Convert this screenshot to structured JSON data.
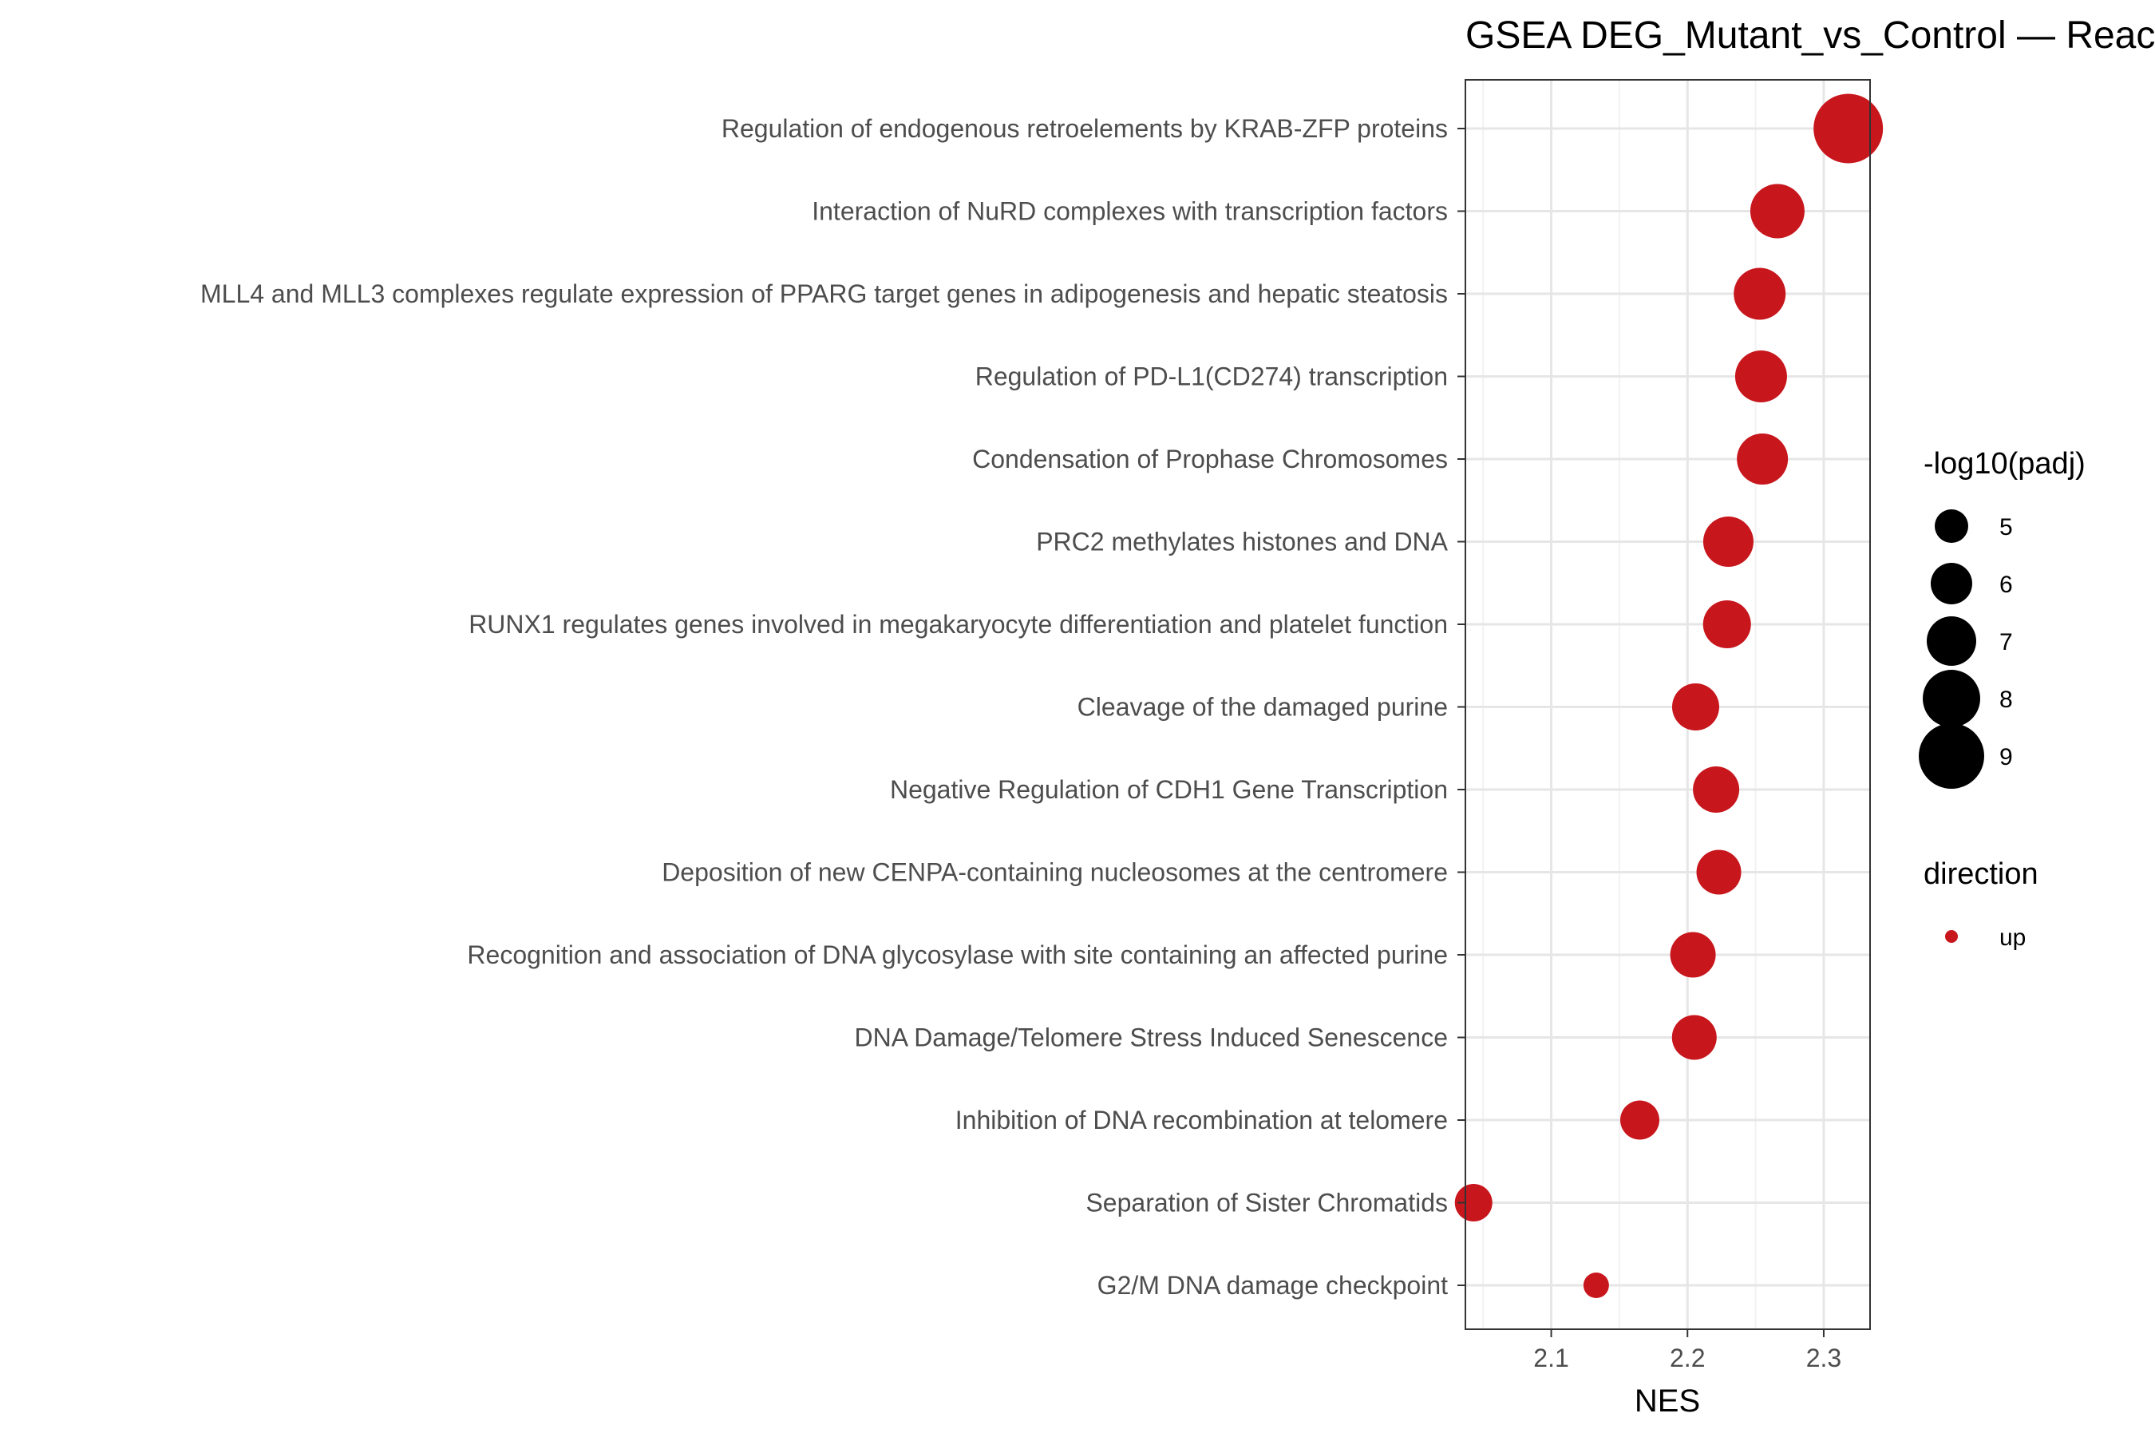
{
  "chart_data": {
    "type": "scatter",
    "title": "GSEA DEG_Mutant_vs_Control — Reactome",
    "xlabel": "NES",
    "ylabel": "",
    "xlim": [
      2.037,
      2.334
    ],
    "xticks": [
      2.1,
      2.2,
      2.3
    ],
    "xtick_labels": [
      "2.1",
      "2.2",
      "2.3"
    ],
    "grid": true,
    "legend_position": "right",
    "categories": [
      "Regulation of endogenous retroelements by KRAB-ZFP proteins",
      "Interaction of NuRD complexes with transcription factors",
      "MLL4 and MLL3 complexes regulate expression of PPARG target genes in adipogenesis and hepatic steatosis",
      "Regulation of PD-L1(CD274) transcription",
      "Condensation of Prophase Chromosomes",
      "PRC2 methylates histones and DNA",
      "RUNX1 regulates genes involved in megakaryocyte differentiation and platelet function",
      "Cleavage of the damaged purine",
      "Negative Regulation of CDH1 Gene Transcription",
      "Deposition of new CENPA-containing nucleosomes at the centromere",
      "Recognition and association of DNA glycosylase with site containing an affected purine",
      "DNA Damage/Telomere Stress Induced Senescence",
      "Inhibition of DNA recombination at telomere",
      "Separation of Sister Chromatids",
      "G2/M DNA damage checkpoint"
    ],
    "series": [
      {
        "name": "up",
        "color": "#c8161d",
        "x": [
          2.318,
          2.266,
          2.253,
          2.254,
          2.255,
          2.23,
          2.229,
          2.206,
          2.221,
          2.223,
          2.204,
          2.205,
          2.165,
          2.043,
          2.133
        ],
        "size_values": [
          9.5,
          7.6,
          7.3,
          7.3,
          7.2,
          7.1,
          6.8,
          6.7,
          6.6,
          6.4,
          6.5,
          6.4,
          5.7,
          5.5,
          4.0
        ]
      }
    ],
    "size_legend": {
      "title": "-log10(padj)",
      "values": [
        5,
        6,
        7,
        8,
        9
      ],
      "labels": [
        "5",
        "6",
        "7",
        "8",
        "9"
      ]
    },
    "color_legend": {
      "title": "direction",
      "entries": [
        {
          "label": "up",
          "color": "#c8161d"
        }
      ]
    }
  }
}
